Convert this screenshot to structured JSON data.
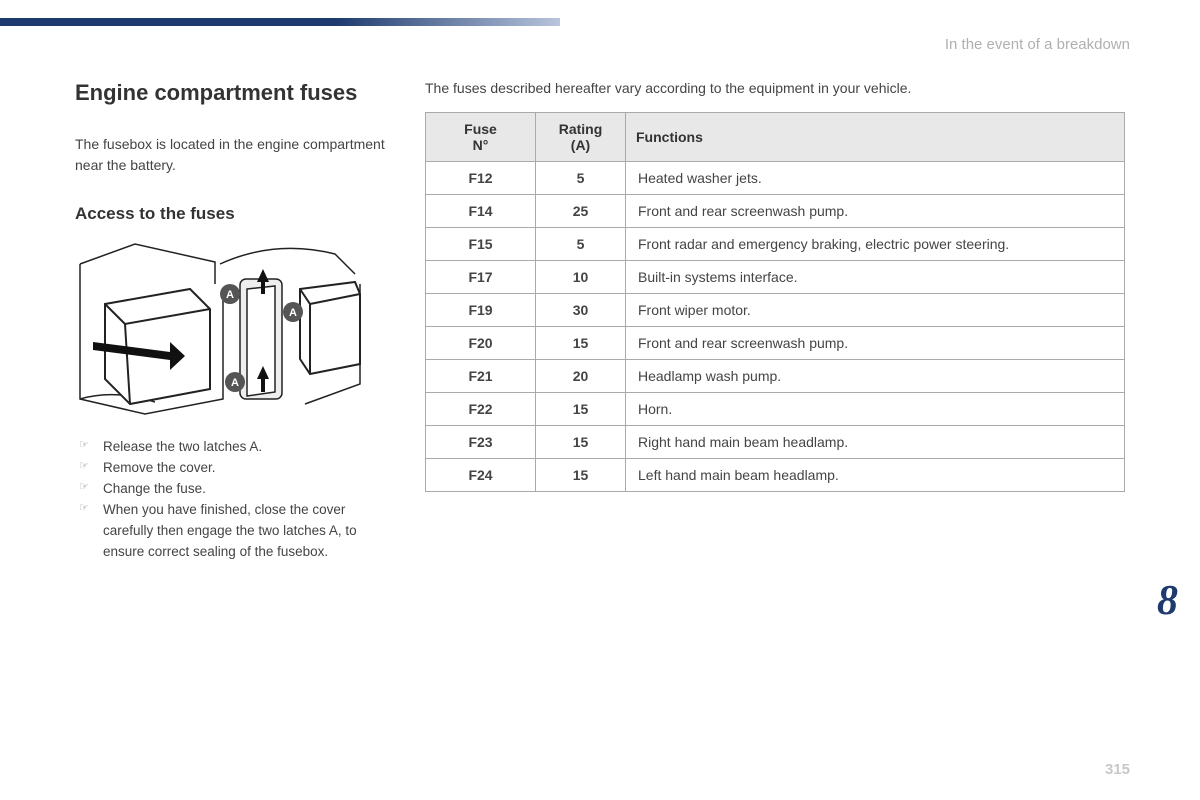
{
  "header": {
    "breadcrumb": "In the event of a breakdown"
  },
  "left": {
    "title": "Engine compartment fuses",
    "intro": "The fusebox is located in the engine compartment near the battery.",
    "subtitle": "Access to the fuses",
    "steps": [
      "Release the two latches A.",
      "Remove the cover.",
      "Change the fuse.",
      "When you have finished, close the cover carefully then engage the two latches A, to ensure correct sealing of the fusebox."
    ]
  },
  "right": {
    "note": "The fuses described hereafter vary according to the equipment in your vehicle.",
    "table": {
      "headers": {
        "fuse": "Fuse N°",
        "rating": "Rating (A)",
        "functions": "Functions"
      },
      "rows": [
        {
          "fuse": "F12",
          "rating": "5",
          "func": "Heated washer jets."
        },
        {
          "fuse": "F14",
          "rating": "25",
          "func": "Front and rear screenwash pump."
        },
        {
          "fuse": "F15",
          "rating": "5",
          "func": "Front radar and emergency braking, electric power steering."
        },
        {
          "fuse": "F17",
          "rating": "10",
          "func": "Built-in systems interface."
        },
        {
          "fuse": "F19",
          "rating": "30",
          "func": "Front wiper motor."
        },
        {
          "fuse": "F20",
          "rating": "15",
          "func": "Front and rear screenwash pump."
        },
        {
          "fuse": "F21",
          "rating": "20",
          "func": "Headlamp wash pump."
        },
        {
          "fuse": "F22",
          "rating": "15",
          "func": "Horn."
        },
        {
          "fuse": "F23",
          "rating": "15",
          "func": "Right hand main beam headlamp."
        },
        {
          "fuse": "F24",
          "rating": "15",
          "func": "Left hand main beam headlamp."
        }
      ]
    }
  },
  "chapter": "8",
  "page": "315",
  "styling": {
    "accent_color": "#1e3a6e",
    "header_text_color": "#b0b0b0",
    "body_text_color": "#444",
    "table_header_bg": "#e8e8e8",
    "table_border_color": "#aaaaaa",
    "page_num_color": "#c8c8c8",
    "title_fontsize": 22,
    "subtitle_fontsize": 17,
    "body_fontsize": 14,
    "chapter_fontsize": 42
  },
  "diagram": {
    "type": "technical-line-drawing",
    "description": "Engine fusebox with cover, two latches labelled A, direction arrows",
    "stroke": "#222222",
    "fill": "#ffffff",
    "badge_fill": "#555555",
    "badge_text": "#ffffff"
  }
}
